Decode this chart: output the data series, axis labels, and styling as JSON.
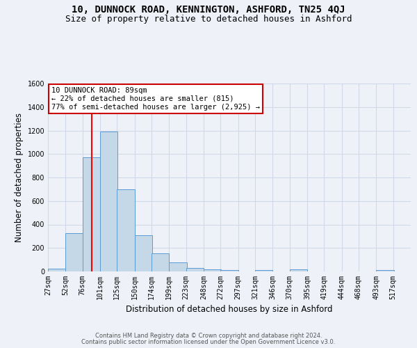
{
  "title": "10, DUNNOCK ROAD, KENNINGTON, ASHFORD, TN25 4QJ",
  "subtitle": "Size of property relative to detached houses in Ashford",
  "xlabel": "Distribution of detached houses by size in Ashford",
  "ylabel": "Number of detached properties",
  "footer_line1": "Contains HM Land Registry data © Crown copyright and database right 2024.",
  "footer_line2": "Contains public sector information licensed under the Open Government Licence v3.0.",
  "bin_labels": [
    "27sqm",
    "52sqm",
    "76sqm",
    "101sqm",
    "125sqm",
    "150sqm",
    "174sqm",
    "199sqm",
    "223sqm",
    "248sqm",
    "272sqm",
    "297sqm",
    "321sqm",
    "346sqm",
    "370sqm",
    "395sqm",
    "419sqm",
    "444sqm",
    "468sqm",
    "493sqm",
    "517sqm"
  ],
  "bar_values": [
    25,
    325,
    970,
    1190,
    700,
    310,
    155,
    75,
    30,
    18,
    10,
    0,
    10,
    0,
    15,
    0,
    0,
    0,
    0,
    10,
    0
  ],
  "bar_color": "#c5d8e8",
  "bar_edge_color": "#5b9bd5",
  "red_line_x": 89,
  "bin_edges": [
    27,
    52,
    76,
    101,
    125,
    150,
    174,
    199,
    223,
    248,
    272,
    297,
    321,
    346,
    370,
    395,
    419,
    444,
    468,
    493,
    517
  ],
  "bin_width": 25,
  "ylim": [
    0,
    1600
  ],
  "yticks": [
    0,
    200,
    400,
    600,
    800,
    1000,
    1200,
    1400,
    1600
  ],
  "annotation_text_line1": "10 DUNNOCK ROAD: 89sqm",
  "annotation_text_line2": "← 22% of detached houses are smaller (815)",
  "annotation_text_line3": "77% of semi-detached houses are larger (2,925) →",
  "annotation_box_color": "#ffffff",
  "annotation_box_edge_color": "#cc0000",
  "grid_color": "#d0d8e8",
  "bg_color": "#eef2f8",
  "title_fontsize": 10,
  "subtitle_fontsize": 9,
  "axis_label_fontsize": 8.5,
  "tick_fontsize": 7,
  "footer_fontsize": 6,
  "annot_fontsize": 7.5
}
